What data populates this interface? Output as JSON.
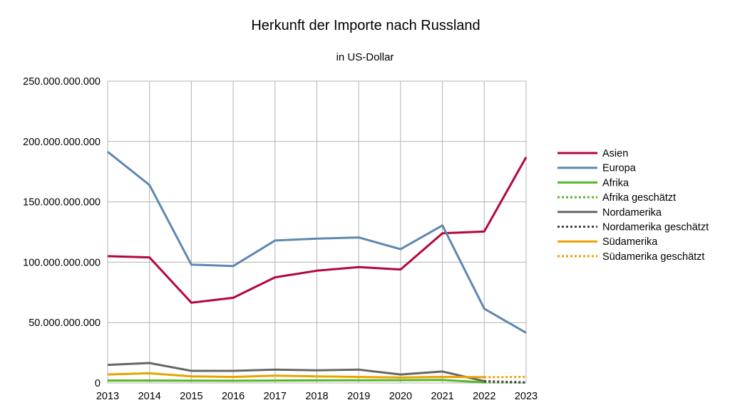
{
  "chart_data": {
    "type": "line",
    "title": "Herkunft der Importe nach Russland",
    "subtitle": "in US-Dollar",
    "xlabel": "",
    "ylabel": "",
    "ylim": [
      0,
      250000000000
    ],
    "yticks": [
      0,
      50000000000,
      100000000000,
      150000000000,
      200000000000,
      250000000000
    ],
    "ytick_labels": [
      "0",
      "50.000.000.000",
      "100.000.000.000",
      "150.000.000.000",
      "200.000.000.000",
      "250.000.000.000"
    ],
    "x": [
      "2013",
      "2014",
      "2015",
      "2016",
      "2017",
      "2018",
      "2019",
      "2020",
      "2021",
      "2022",
      "2023"
    ],
    "grid": true,
    "legend_position": "right",
    "series": [
      {
        "name": "Asien",
        "color": "#b3063f",
        "dashed": false,
        "values": [
          105000000000,
          104000000000,
          66500000000,
          70500000000,
          87500000000,
          93000000000,
          96000000000,
          94000000000,
          124000000000,
          125500000000,
          187000000000
        ]
      },
      {
        "name": "Europa",
        "color": "#5f87b1",
        "dashed": false,
        "values": [
          191500000000,
          164000000000,
          98000000000,
          96800000000,
          118000000000,
          119500000000,
          120500000000,
          110800000000,
          130500000000,
          61500000000,
          41500000000
        ]
      },
      {
        "name": "Afrika",
        "color": "#56b625",
        "dashed": false,
        "values": [
          2000000000,
          2000000000,
          1900000000,
          1800000000,
          2000000000,
          2100000000,
          2200000000,
          2300000000,
          2500000000,
          500000000,
          null
        ]
      },
      {
        "name": "Afrika geschätzt",
        "color": "#56b625",
        "dashed": true,
        "values": [
          null,
          null,
          null,
          null,
          null,
          null,
          null,
          null,
          null,
          500000000,
          300000000
        ]
      },
      {
        "name": "Nordamerika",
        "color": "#666666",
        "dashed": false,
        "values": [
          15000000000,
          16500000000,
          10000000000,
          10000000000,
          11000000000,
          10500000000,
          11000000000,
          7000000000,
          9500000000,
          1500000000,
          null
        ]
      },
      {
        "name": "Nordamerika geschätzt",
        "color": "#444444",
        "dashed": true,
        "values": [
          null,
          null,
          null,
          null,
          null,
          null,
          null,
          null,
          null,
          1500000000,
          500000000
        ]
      },
      {
        "name": "Südamerika",
        "color": "#e8a202",
        "dashed": false,
        "values": [
          7000000000,
          8000000000,
          5500000000,
          5000000000,
          6000000000,
          5500000000,
          5000000000,
          4500000000,
          5000000000,
          4800000000,
          null
        ]
      },
      {
        "name": "Südamerika geschätzt",
        "color": "#e8a202",
        "dashed": true,
        "values": [
          null,
          null,
          null,
          null,
          null,
          null,
          null,
          null,
          null,
          4800000000,
          5000000000
        ]
      }
    ]
  }
}
